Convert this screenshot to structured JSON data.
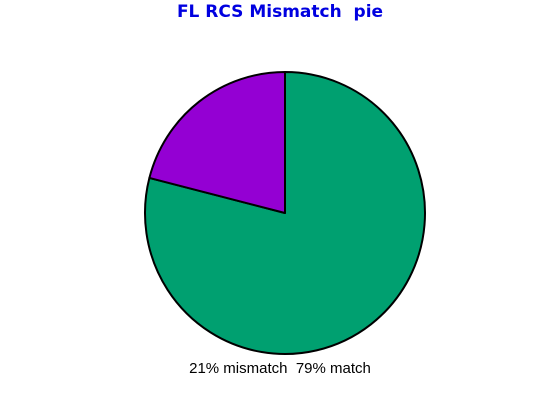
{
  "chart_data": {
    "type": "pie",
    "title": "FL RCS Mismatch  pie",
    "categories": [
      "match",
      "mismatch"
    ],
    "values": [
      79,
      21
    ],
    "labels": [
      "79% match",
      "21% mismatch"
    ],
    "colors": [
      "#00a070",
      "#9400d3"
    ],
    "title_color": "#0000e0",
    "legend": "bottom"
  }
}
